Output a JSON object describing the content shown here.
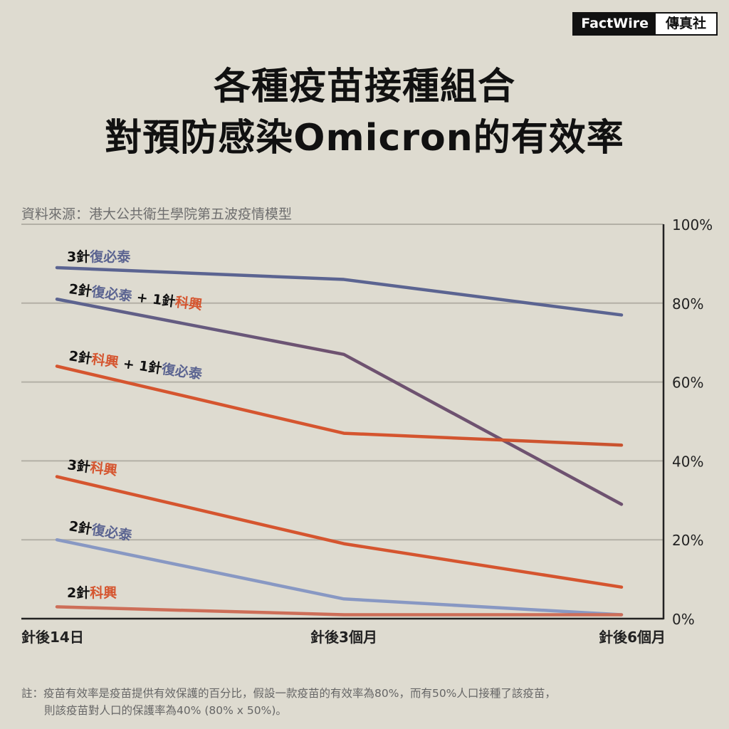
{
  "brand": {
    "en": "FactWire",
    "zh": "傳真社"
  },
  "title": {
    "line1": "各種疫苗接種組合",
    "line2": "對預防感染Omicron的有效率"
  },
  "source": "資料來源：港大公共衛生學院第五波疫情模型",
  "note": {
    "line1": "註：疫苗有效率是疫苗提供有效保護的百分比，假設一款疫苗的有效率為80%，而有50%人口接種了該疫苗，",
    "line2": "則該疫苗對人口的保護率為40% (80% x 50%)。"
  },
  "colors": {
    "biontech": "#5b6491",
    "sinovac": "#d5552f",
    "mixed": "#6e5270",
    "light_blue": "#8898c3",
    "light_orange": "#cd6e58",
    "text": "#111111"
  },
  "chart_data": {
    "type": "line",
    "categories": [
      "針後14日",
      "針後3個月",
      "針後6個月"
    ],
    "ylim": [
      0,
      100
    ],
    "y_ticks": [
      "0%",
      "20%",
      "40%",
      "60%",
      "80%",
      "100%"
    ],
    "grid": true,
    "series": [
      {
        "name": "3針復必泰",
        "values": [
          89,
          86,
          77
        ],
        "label_parts": [
          {
            "text": "3針",
            "color": "#111111"
          },
          {
            "text": "復必泰",
            "color": "#5b6491"
          }
        ]
      },
      {
        "name": "2針復必泰 + 1針科興",
        "values": [
          81,
          67,
          29
        ],
        "label_parts": [
          {
            "text": "2針",
            "color": "#111111"
          },
          {
            "text": "復必泰",
            "color": "#5b6491"
          },
          {
            "text": " + 1針",
            "color": "#111111"
          },
          {
            "text": "科興",
            "color": "#d5552f"
          }
        ]
      },
      {
        "name": "2針科興 + 1針復必泰",
        "values": [
          64,
          47,
          44
        ],
        "label_parts": [
          {
            "text": "2針",
            "color": "#111111"
          },
          {
            "text": "科興",
            "color": "#d5552f"
          },
          {
            "text": " + 1針",
            "color": "#111111"
          },
          {
            "text": "復必泰",
            "color": "#5b6491"
          }
        ]
      },
      {
        "name": "3針科興",
        "values": [
          36,
          19,
          8
        ],
        "label_parts": [
          {
            "text": "3針",
            "color": "#111111"
          },
          {
            "text": "科興",
            "color": "#d5552f"
          }
        ]
      },
      {
        "name": "2針復必泰",
        "values": [
          20,
          5,
          1
        ],
        "label_parts": [
          {
            "text": "2針",
            "color": "#111111"
          },
          {
            "text": "復必泰",
            "color": "#5b6491"
          }
        ]
      },
      {
        "name": "2針科興",
        "values": [
          3,
          1,
          1
        ],
        "label_parts": [
          {
            "text": "2針",
            "color": "#111111"
          },
          {
            "text": "科興",
            "color": "#d5552f"
          }
        ]
      }
    ]
  }
}
